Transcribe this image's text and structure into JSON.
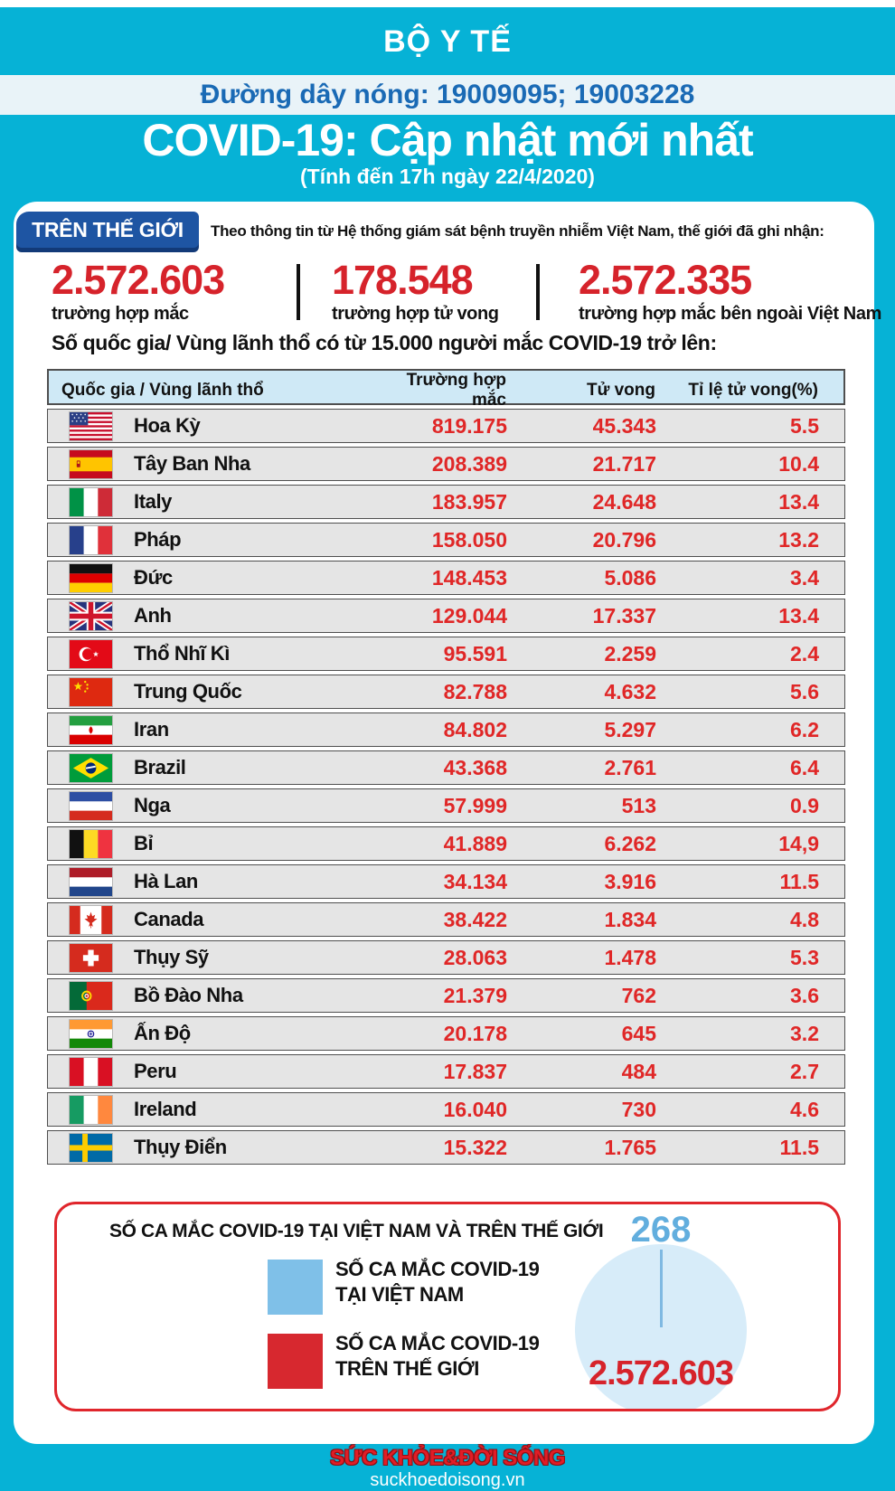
{
  "header": {
    "ministry": "BỘ Y TẾ",
    "hotline": "Đường dây nóng: 19009095; 19003228",
    "title": "COVID-19: Cập nhật mới nhất",
    "subtitle": "(Tính đến 17h ngày 22/4/2020)"
  },
  "world": {
    "badge": "TRÊN THẾ GIỚI",
    "intro": "Theo thông tin từ Hệ thống giám sát bệnh truyền nhiễm Việt Nam, thế giới đã ghi nhận:",
    "stats": [
      {
        "value": "2.572.603",
        "label": "trường hợp mắc"
      },
      {
        "value": "178.548",
        "label": "trường hợp tử vong"
      },
      {
        "value": "2.572.335",
        "label": "trường hợp mắc bên ngoài Việt Nam"
      }
    ],
    "table_caption": "Số quốc gia/ Vùng lãnh thổ có từ 15.000 người mắc COVID-19 trở lên:"
  },
  "table": {
    "headers": [
      "Quốc gia / Vùng lãnh thổ",
      "Trường hợp mắc",
      "Tử vong",
      "Tỉ lệ tử vong(%)"
    ],
    "rows": [
      {
        "flag": "us",
        "country": "Hoa Kỳ",
        "cases": "819.175",
        "deaths": "45.343",
        "rate": "5.5"
      },
      {
        "flag": "es",
        "country": "Tây Ban Nha",
        "cases": "208.389",
        "deaths": "21.717",
        "rate": "10.4"
      },
      {
        "flag": "it",
        "country": "Italy",
        "cases": "183.957",
        "deaths": "24.648",
        "rate": "13.4"
      },
      {
        "flag": "fr",
        "country": "Pháp",
        "cases": "158.050",
        "deaths": "20.796",
        "rate": "13.2"
      },
      {
        "flag": "de",
        "country": "Đức",
        "cases": "148.453",
        "deaths": "5.086",
        "rate": "3.4"
      },
      {
        "flag": "gb",
        "country": "Anh",
        "cases": "129.044",
        "deaths": "17.337",
        "rate": "13.4"
      },
      {
        "flag": "tr",
        "country": "Thổ Nhĩ Kì",
        "cases": "95.591",
        "deaths": "2.259",
        "rate": "2.4"
      },
      {
        "flag": "cn",
        "country": "Trung Quốc",
        "cases": "82.788",
        "deaths": "4.632",
        "rate": "5.6"
      },
      {
        "flag": "ir",
        "country": "Iran",
        "cases": "84.802",
        "deaths": "5.297",
        "rate": "6.2"
      },
      {
        "flag": "br",
        "country": "Brazil",
        "cases": "43.368",
        "deaths": "2.761",
        "rate": "6.4"
      },
      {
        "flag": "ru",
        "country": "Nga",
        "cases": "57.999",
        "deaths": "513",
        "rate": "0.9"
      },
      {
        "flag": "be",
        "country": "Bỉ",
        "cases": "41.889",
        "deaths": "6.262",
        "rate": "14,9"
      },
      {
        "flag": "nl",
        "country": "Hà Lan",
        "cases": "34.134",
        "deaths": "3.916",
        "rate": "11.5"
      },
      {
        "flag": "ca",
        "country": "Canada",
        "cases": "38.422",
        "deaths": "1.834",
        "rate": "4.8"
      },
      {
        "flag": "ch",
        "country": "Thụy Sỹ",
        "cases": "28.063",
        "deaths": "1.478",
        "rate": "5.3"
      },
      {
        "flag": "pt",
        "country": "Bồ Đào Nha",
        "cases": "21.379",
        "deaths": "762",
        "rate": "3.6"
      },
      {
        "flag": "in",
        "country": "Ấn Độ",
        "cases": "20.178",
        "deaths": "645",
        "rate": "3.2"
      },
      {
        "flag": "pe",
        "country": "Peru",
        "cases": "17.837",
        "deaths": "484",
        "rate": "2.7"
      },
      {
        "flag": "ie",
        "country": "Ireland",
        "cases": "16.040",
        "deaths": "730",
        "rate": "4.6"
      },
      {
        "flag": "se",
        "country": "Thụy Điển",
        "cases": "15.322",
        "deaths": "1.765",
        "rate": "11.5"
      }
    ]
  },
  "chart": {
    "title": "SỐ CA MẮC COVID-19 TẠI VIỆT NAM VÀ TRÊN THẾ GIỚI",
    "legend": [
      {
        "color": "#7fc0e8",
        "line1": "SỐ CA MẮC COVID-19",
        "line2": "TẠI VIỆT NAM"
      },
      {
        "color": "#d7282f",
        "line1": "SỐ CA MẮC COVID-19",
        "line2": "TRÊN THẾ GIỚI"
      }
    ],
    "vietnam_value": "268",
    "world_value": "2.572.603"
  },
  "chart_data": {
    "type": "pie",
    "title": "SỐ CA MẮC COVID-19 TẠI VIỆT NAM VÀ TRÊN THẾ GIỚI",
    "slices": [
      {
        "label": "SỐ CA MẮC COVID-19 TẠI VIỆT NAM",
        "value": 268,
        "color": "#7fc0e8"
      },
      {
        "label": "SỐ CA MẮC COVID-19 TRÊN THẾ GIỚI",
        "value": 2572603,
        "color": "#d7282f"
      }
    ],
    "annotations": [
      "268",
      "2.572.603"
    ],
    "legend_position": "left"
  },
  "colors": {
    "background_cyan": "#06b2d6",
    "hotline_blue": "#1a6ab5",
    "badge_blue": "#1e55a3",
    "stat_red": "#d6232b",
    "table_header_bg": "#cfe9f6",
    "table_row_bg": "#e5e5e5",
    "chart_border_red": "#e0262c",
    "pie_fill": "#d7ecf9"
  },
  "footer": {
    "logo": "SỨC KHỎE&ĐỜI SỐNG",
    "website": "suckhoedoisong.vn"
  }
}
